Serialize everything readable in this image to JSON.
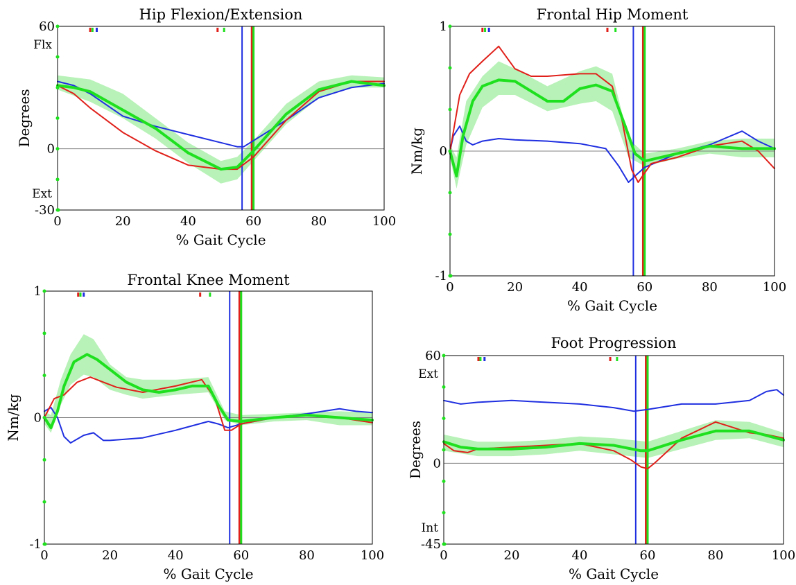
{
  "colors": {
    "blue": "#1f2fe0",
    "red": "#e0201a",
    "green": "#1fe01f",
    "band": "#b8f2b8",
    "axis": "#000000",
    "zero": "#808080"
  },
  "chart_data": [
    {
      "type": "line",
      "title": "Hip Flexion/Extension",
      "xlabel": "% Gait Cycle",
      "ylabel": "Degrees",
      "xlim": [
        0,
        100
      ],
      "ylim": [
        -30,
        60
      ],
      "x_ticks": [
        "0",
        "20",
        "40",
        "60",
        "80",
        "100"
      ],
      "y_ticks": [
        {
          "value": 60,
          "label": "60"
        },
        {
          "value": 0,
          "label": "0"
        },
        {
          "value": -30,
          "label": "-30"
        }
      ],
      "upper_side_label": "Flx",
      "lower_side_label": "Ext",
      "vlines": [
        {
          "x": 56.5,
          "color": "blue"
        },
        {
          "x": 59.5,
          "color": "red"
        },
        {
          "x": 60,
          "color": "green"
        }
      ],
      "top_markers": [
        {
          "x": 10,
          "color": "red"
        },
        {
          "x": 10.7,
          "color": "green"
        },
        {
          "x": 12,
          "color": "blue"
        },
        {
          "x": 49,
          "color": "red"
        },
        {
          "x": 51,
          "color": "green"
        }
      ],
      "band": {
        "x": [
          0,
          10,
          20,
          30,
          40,
          50,
          55,
          60,
          70,
          80,
          90,
          100
        ],
        "upper": [
          36,
          34,
          27,
          15,
          3,
          -6,
          -4,
          4,
          22,
          33,
          36,
          35
        ],
        "lower": [
          29,
          23,
          15,
          5,
          -7,
          -17,
          -15,
          -6,
          12,
          25,
          30,
          30
        ]
      },
      "series": [
        {
          "color": "blue",
          "x": [
            0,
            5,
            10,
            20,
            30,
            40,
            50,
            55,
            57,
            60,
            70,
            80,
            90,
            100
          ],
          "y": [
            33,
            31,
            27,
            16,
            11,
            7,
            3,
            1,
            1,
            4,
            14,
            25,
            30,
            32
          ]
        },
        {
          "color": "red",
          "x": [
            0,
            5,
            10,
            20,
            30,
            40,
            50,
            55,
            60,
            70,
            80,
            90,
            100
          ],
          "y": [
            31,
            27,
            20,
            8,
            -1,
            -8,
            -10,
            -10,
            -4,
            14,
            28,
            33,
            33
          ]
        },
        {
          "color": "green",
          "x": [
            0,
            5,
            10,
            20,
            30,
            40,
            50,
            55,
            60,
            70,
            80,
            90,
            100
          ],
          "y": [
            31,
            30,
            28,
            19,
            10,
            -2,
            -10,
            -9,
            -1,
            17,
            29,
            33,
            31
          ],
          "thick": true
        }
      ]
    },
    {
      "type": "line",
      "title": "Frontal Hip Moment",
      "xlabel": "% Gait Cycle",
      "ylabel": "Nm/kg",
      "xlim": [
        0,
        100
      ],
      "ylim": [
        -1,
        1
      ],
      "x_ticks": [
        "0",
        "20",
        "40",
        "60",
        "80",
        "100"
      ],
      "y_ticks": [
        {
          "value": 1,
          "label": "1"
        },
        {
          "value": 0,
          "label": "0"
        },
        {
          "value": -1,
          "label": "-1"
        }
      ],
      "upper_side_label": "",
      "lower_side_label": "",
      "vlines": [
        {
          "x": 56.5,
          "color": "blue"
        },
        {
          "x": 59.5,
          "color": "red"
        },
        {
          "x": 60,
          "color": "green"
        }
      ],
      "top_markers": [
        {
          "x": 10,
          "color": "red"
        },
        {
          "x": 10.8,
          "color": "green"
        },
        {
          "x": 12,
          "color": "blue"
        },
        {
          "x": 48.5,
          "color": "red"
        },
        {
          "x": 51,
          "color": "green"
        }
      ],
      "band": {
        "x": [
          0,
          2,
          5,
          10,
          15,
          20,
          30,
          40,
          45,
          50,
          55,
          60,
          70,
          80,
          90,
          100
        ],
        "upper": [
          0.05,
          -0.05,
          0.4,
          0.6,
          0.72,
          0.66,
          0.52,
          0.64,
          0.68,
          0.62,
          0.1,
          -0.02,
          0.02,
          0.08,
          0.1,
          0.1
        ],
        "lower": [
          -0.05,
          -0.3,
          0.05,
          0.35,
          0.45,
          0.45,
          0.32,
          0.38,
          0.4,
          0.32,
          -0.05,
          -0.12,
          -0.06,
          -0.02,
          -0.05,
          -0.05
        ]
      },
      "series": [
        {
          "color": "blue",
          "x": [
            0,
            1,
            3,
            5,
            7,
            10,
            15,
            20,
            30,
            40,
            48,
            52,
            55,
            57,
            60,
            70,
            80,
            90,
            95,
            100
          ],
          "y": [
            0,
            0.12,
            0.2,
            0.08,
            0.05,
            0.08,
            0.1,
            0.09,
            0.08,
            0.06,
            0.02,
            -0.12,
            -0.25,
            -0.2,
            -0.13,
            -0.02,
            0.05,
            0.16,
            0.08,
            0.02
          ]
        },
        {
          "color": "red",
          "x": [
            0,
            3,
            6,
            10,
            15,
            20,
            25,
            30,
            40,
            45,
            50,
            53,
            56,
            58,
            62,
            70,
            80,
            90,
            95,
            100
          ],
          "y": [
            0,
            0.45,
            0.62,
            0.72,
            0.84,
            0.66,
            0.6,
            0.6,
            0.62,
            0.62,
            0.52,
            0.25,
            -0.15,
            -0.25,
            -0.1,
            -0.05,
            0.04,
            0.08,
            0.0,
            -0.14
          ]
        },
        {
          "color": "green",
          "x": [
            0,
            2,
            4,
            7,
            10,
            15,
            20,
            25,
            30,
            35,
            40,
            45,
            50,
            54,
            57,
            60,
            70,
            80,
            90,
            100
          ],
          "y": [
            0,
            -0.2,
            0.12,
            0.4,
            0.52,
            0.57,
            0.56,
            0.48,
            0.4,
            0.4,
            0.5,
            0.53,
            0.48,
            0.2,
            -0.02,
            -0.08,
            -0.02,
            0.04,
            0.02,
            0.02
          ],
          "thick": true
        }
      ]
    },
    {
      "type": "line",
      "title": "Frontal Knee Moment",
      "xlabel": "% Gait Cycle",
      "ylabel": "Nm/kg",
      "xlim": [
        0,
        100
      ],
      "ylim": [
        -1,
        1
      ],
      "x_ticks": [
        "0",
        "20",
        "40",
        "60",
        "80",
        "100"
      ],
      "y_ticks": [
        {
          "value": 1,
          "label": "1"
        },
        {
          "value": 0,
          "label": "0"
        },
        {
          "value": -1,
          "label": "-1"
        }
      ],
      "upper_side_label": "",
      "lower_side_label": "",
      "vlines": [
        {
          "x": 56.5,
          "color": "blue"
        },
        {
          "x": 59.5,
          "color": "red"
        },
        {
          "x": 60,
          "color": "green"
        }
      ],
      "top_markers": [
        {
          "x": 10.3,
          "color": "red"
        },
        {
          "x": 11,
          "color": "green"
        },
        {
          "x": 12,
          "color": "blue"
        },
        {
          "x": 47.5,
          "color": "red"
        },
        {
          "x": 50.5,
          "color": "green"
        }
      ],
      "band": {
        "x": [
          0,
          2,
          5,
          8,
          12,
          15,
          20,
          25,
          30,
          40,
          50,
          55,
          60,
          70,
          80,
          90,
          100
        ],
        "upper": [
          0.05,
          0.02,
          0.3,
          0.5,
          0.66,
          0.62,
          0.42,
          0.32,
          0.3,
          0.3,
          0.32,
          0.05,
          0.02,
          0.03,
          0.04,
          0.05,
          0.04
        ],
        "lower": [
          -0.05,
          -0.12,
          0.1,
          0.26,
          0.34,
          0.32,
          0.22,
          0.18,
          0.15,
          0.18,
          0.2,
          -0.02,
          -0.06,
          -0.03,
          -0.02,
          -0.06,
          -0.06
        ]
      },
      "series": [
        {
          "color": "blue",
          "x": [
            0,
            2,
            4,
            6,
            8,
            10,
            12,
            15,
            18,
            20,
            30,
            40,
            50,
            53,
            56,
            60,
            70,
            80,
            90,
            95,
            100
          ],
          "y": [
            0.05,
            0.08,
            0.0,
            -0.15,
            -0.2,
            -0.17,
            -0.14,
            -0.12,
            -0.18,
            -0.18,
            -0.16,
            -0.1,
            -0.03,
            -0.05,
            -0.08,
            -0.05,
            0.0,
            0.03,
            0.07,
            0.05,
            0.04
          ]
        },
        {
          "color": "red",
          "x": [
            0,
            3,
            6,
            10,
            14,
            18,
            22,
            30,
            40,
            48,
            52,
            55,
            57,
            60,
            70,
            80,
            90,
            100
          ],
          "y": [
            0.0,
            0.15,
            0.18,
            0.28,
            0.32,
            0.28,
            0.24,
            0.2,
            0.25,
            0.3,
            0.15,
            -0.1,
            -0.1,
            -0.05,
            0.0,
            0.02,
            0.0,
            -0.04
          ]
        },
        {
          "color": "green",
          "x": [
            0,
            2,
            4,
            6,
            9,
            13,
            16,
            20,
            25,
            30,
            35,
            40,
            45,
            50,
            53,
            56,
            60,
            70,
            80,
            90,
            100
          ],
          "y": [
            0.0,
            -0.08,
            0.05,
            0.25,
            0.44,
            0.5,
            0.46,
            0.38,
            0.28,
            0.22,
            0.2,
            0.22,
            0.25,
            0.25,
            0.1,
            -0.02,
            -0.03,
            0.0,
            0.02,
            0.0,
            -0.02
          ],
          "thick": true
        }
      ]
    },
    {
      "type": "line",
      "title": "Foot Progression",
      "xlabel": "% Gait Cycle",
      "ylabel": "Degrees",
      "xlim": [
        0,
        100
      ],
      "ylim": [
        -45,
        60
      ],
      "x_ticks": [
        "0",
        "20",
        "40",
        "60",
        "80",
        "100"
      ],
      "y_ticks": [
        {
          "value": 60,
          "label": "60"
        },
        {
          "value": 0,
          "label": "0"
        },
        {
          "value": -45,
          "label": "-45"
        }
      ],
      "upper_side_label": "Ext",
      "lower_side_label": "Int",
      "vlines": [
        {
          "x": 56.5,
          "color": "blue"
        },
        {
          "x": 59.5,
          "color": "red"
        },
        {
          "x": 60,
          "color": "green"
        }
      ],
      "top_markers": [
        {
          "x": 10.2,
          "color": "red"
        },
        {
          "x": 10.8,
          "color": "green"
        },
        {
          "x": 12,
          "color": "blue"
        },
        {
          "x": 49,
          "color": "red"
        },
        {
          "x": 51,
          "color": "green"
        }
      ],
      "band": {
        "x": [
          0,
          10,
          20,
          30,
          40,
          50,
          55,
          60,
          70,
          80,
          90,
          100
        ],
        "upper": [
          16,
          12,
          12,
          13,
          15,
          14,
          13,
          12,
          18,
          24,
          23,
          17
        ],
        "lower": [
          7,
          4,
          4,
          5,
          7,
          5,
          4,
          3,
          8,
          13,
          14,
          9
        ]
      },
      "series": [
        {
          "color": "blue",
          "x": [
            0,
            5,
            10,
            20,
            30,
            40,
            50,
            56,
            60,
            70,
            80,
            90,
            95,
            98,
            100
          ],
          "y": [
            35,
            33,
            34,
            35,
            34,
            33,
            31,
            29,
            30,
            33,
            33,
            35,
            40,
            41,
            38
          ]
        },
        {
          "color": "red",
          "x": [
            0,
            3,
            7,
            10,
            20,
            30,
            40,
            50,
            55,
            58,
            60,
            62,
            70,
            80,
            85,
            90,
            95,
            100
          ],
          "y": [
            11,
            7,
            6,
            8,
            9,
            10,
            11,
            7,
            2,
            -2,
            -3,
            0,
            14,
            23,
            20,
            17,
            16,
            14
          ]
        },
        {
          "color": "green",
          "x": [
            0,
            5,
            10,
            20,
            30,
            40,
            50,
            58,
            60,
            70,
            80,
            90,
            100
          ],
          "y": [
            12,
            9,
            8,
            8,
            9,
            11,
            10,
            7,
            7,
            13,
            18,
            18,
            13
          ],
          "thick": true
        }
      ]
    }
  ]
}
